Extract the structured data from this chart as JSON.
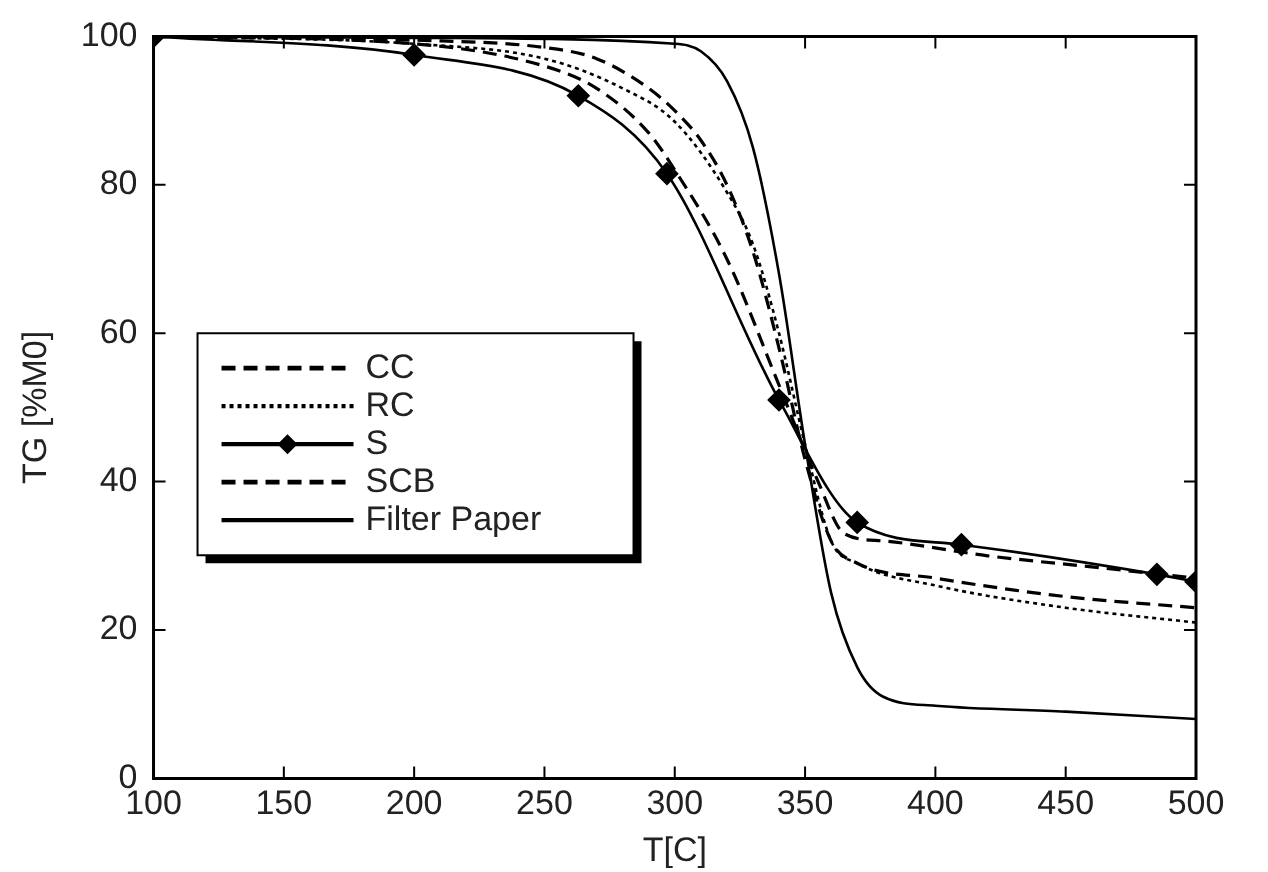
{
  "chart_data": {
    "type": "line",
    "xlabel": "T[C]",
    "ylabel": "TG [%M0]",
    "xlim": [
      100,
      500
    ],
    "xticks": [
      100,
      150,
      200,
      250,
      300,
      350,
      400,
      450,
      500
    ],
    "ylim": [
      0,
      100
    ],
    "yticks": [
      0,
      20,
      40,
      60,
      80,
      100
    ],
    "grid": false,
    "legend": "left",
    "series": [
      {
        "name": "CC",
        "color": "#000000",
        "line_style": "dashed",
        "marker": "none",
        "x": [
          100,
          200,
          250,
          270,
          290,
          300,
          310,
          320,
          330,
          340,
          350,
          360,
          370,
          400,
          450,
          500
        ],
        "values": [
          100,
          99.5,
          98.5,
          97,
          93,
          90,
          86,
          80,
          71,
          58,
          43,
          32,
          29,
          27,
          24.5,
          23
        ]
      },
      {
        "name": "RC",
        "color": "#000000",
        "line_style": "dotted",
        "marker": "none",
        "x": [
          100,
          200,
          250,
          280,
          300,
          320,
          330,
          340,
          350,
          360,
          370,
          400,
          450,
          500
        ],
        "values": [
          100,
          99,
          97,
          93,
          88.5,
          79,
          72,
          60,
          45,
          32,
          29,
          26,
          23,
          21
        ]
      },
      {
        "name": "S",
        "color": "#000000",
        "line_style": "solid",
        "marker": "diamond",
        "x": [
          100,
          200,
          263,
          297,
          340,
          370,
          410,
          485,
          500
        ],
        "values": [
          100,
          97.5,
          92,
          81.5,
          51,
          34.5,
          31.5,
          27.5,
          26.5
        ]
      },
      {
        "name": "SCB",
        "color": "#000000",
        "line_style": "dashed",
        "marker": "none",
        "x": [
          100,
          200,
          250,
          270,
          290,
          300,
          320,
          340,
          355,
          365,
          380,
          420,
          460,
          500
        ],
        "values": [
          100,
          99,
          96,
          93,
          87,
          82,
          70,
          53,
          40,
          33,
          32,
          30,
          28.5,
          27
        ]
      },
      {
        "name": "Filter Paper",
        "color": "#000000",
        "line_style": "solid",
        "marker": "none",
        "x": [
          100,
          200,
          300,
          310,
          320,
          330,
          340,
          350,
          360,
          370,
          380,
          400,
          450,
          500
        ],
        "values": [
          100,
          99.8,
          99,
          98,
          94,
          85,
          68,
          45,
          25,
          15,
          11,
          9.8,
          9,
          8
        ]
      }
    ]
  }
}
